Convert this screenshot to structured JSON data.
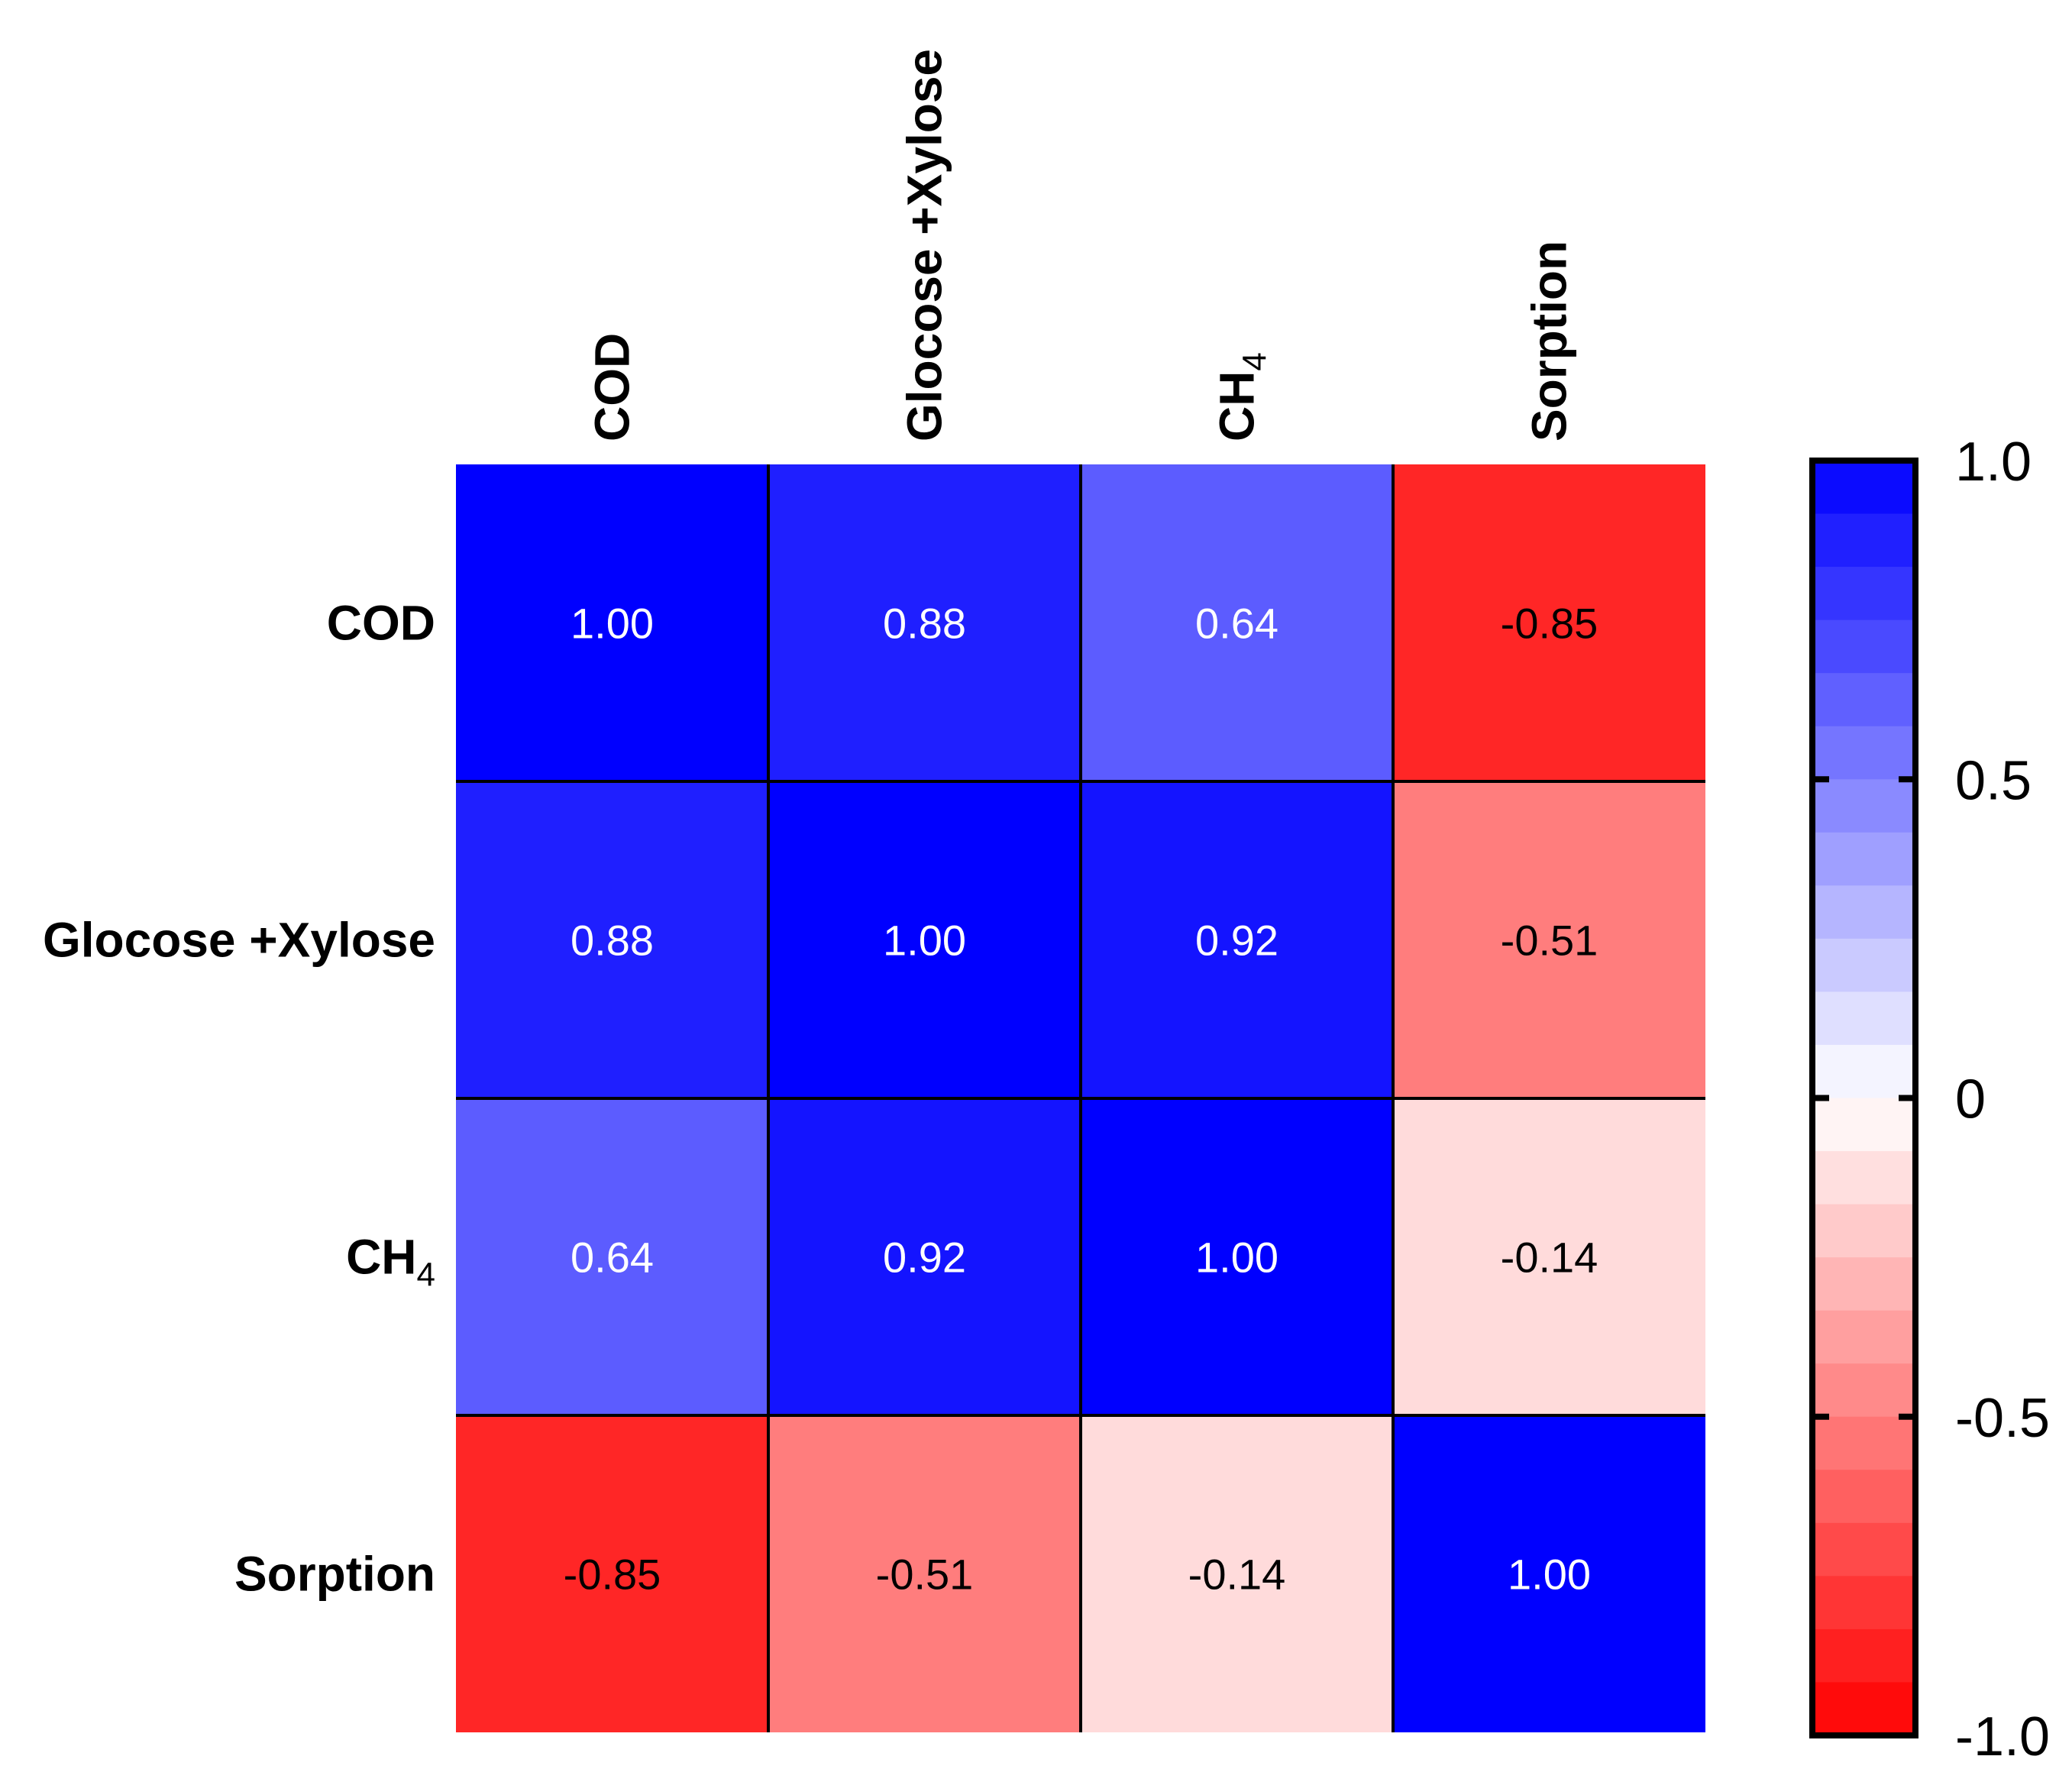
{
  "chart_data": {
    "type": "heatmap",
    "title": "",
    "rows": [
      {
        "label": "COD",
        "sub": ""
      },
      {
        "label": "Glocose +Xylose",
        "sub": ""
      },
      {
        "label": "CH",
        "sub": "4"
      },
      {
        "label": "Sorption",
        "sub": ""
      }
    ],
    "columns": [
      {
        "label": "COD",
        "sub": ""
      },
      {
        "label": "Glocose +Xylose",
        "sub": ""
      },
      {
        "label": "CH",
        "sub": "4"
      },
      {
        "label": "Sorption",
        "sub": ""
      }
    ],
    "values": [
      [
        1.0,
        0.88,
        0.64,
        -0.85
      ],
      [
        0.88,
        1.0,
        0.92,
        -0.51
      ],
      [
        0.64,
        0.92,
        1.0,
        -0.14
      ],
      [
        -0.85,
        -0.51,
        -0.14,
        1.0
      ]
    ],
    "value_labels": [
      [
        "1.00",
        "0.88",
        "0.64",
        "-0.85"
      ],
      [
        "0.88",
        "1.00",
        "0.92",
        "-0.51"
      ],
      [
        "0.64",
        "0.92",
        "1.00",
        "-0.14"
      ],
      [
        "-0.85",
        "-0.51",
        "-0.14",
        "1.00"
      ]
    ],
    "colorbar": {
      "range": [
        -1.0,
        1.0
      ],
      "ticks": [
        1.0,
        0.5,
        0,
        -0.5,
        -1.0
      ],
      "tick_labels": [
        "1.0",
        "0.5",
        "0",
        "-0.5",
        "-1.0"
      ],
      "low_color": "#ff0000",
      "mid_color": "#ffffff",
      "high_color": "#0000ff",
      "steps": 24
    },
    "legend_position": "right"
  }
}
